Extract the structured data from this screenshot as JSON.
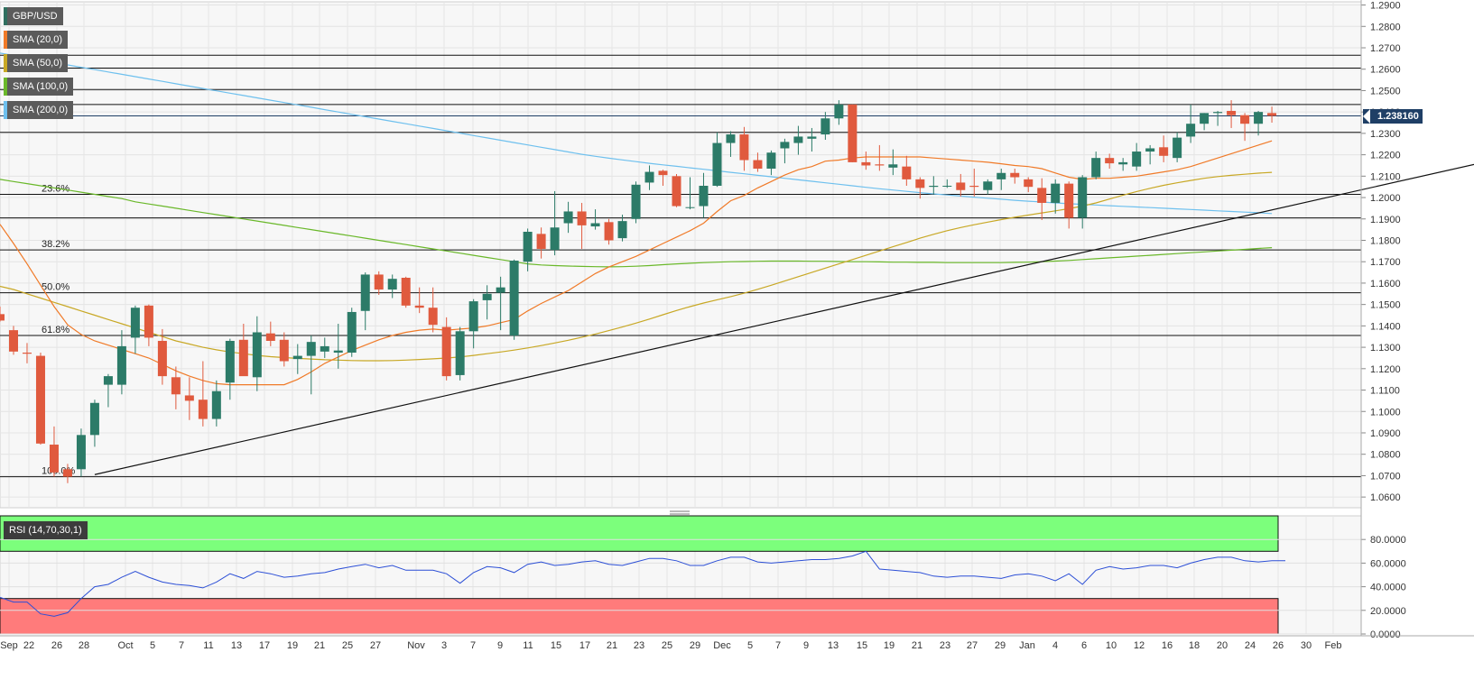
{
  "instrument": "GBP/USD",
  "legend": [
    {
      "label": "GBP/USD",
      "color": "#2f6f5f"
    },
    {
      "label": "SMA (20,0)",
      "color": "#f07a28"
    },
    {
      "label": "SMA (50,0)",
      "color": "#c8a825"
    },
    {
      "label": "SMA (100,0)",
      "color": "#6ab82a"
    },
    {
      "label": "SMA (200,0)",
      "color": "#6ec0ee"
    }
  ],
  "current_price": "1.238160",
  "rsi_label": "RSI (14,70,30,1)",
  "colors": {
    "up": "#2c7b68",
    "down": "#e05a3e",
    "sma20": "#f07a28",
    "sma50": "#c8a825",
    "sma100": "#6ab82a",
    "sma200": "#6ec0ee",
    "rsi": "#2c4fd6",
    "overbought": "#7cff7c",
    "oversold": "#ff7b7b",
    "tag": "#1f3f66"
  },
  "chart_data": {
    "type": "candlestick",
    "title": "",
    "price_ylim": [
      1.055,
      1.2915
    ],
    "price_ticks": [
      "1.2900",
      "1.2800",
      "1.2700",
      "1.2600",
      "1.2500",
      "1.2400",
      "1.2300",
      "1.2200",
      "1.2100",
      "1.2000",
      "1.1900",
      "1.1800",
      "1.1700",
      "1.1600",
      "1.1500",
      "1.1400",
      "1.1300",
      "1.1200",
      "1.1100",
      "1.1000",
      "1.0900",
      "1.0800",
      "1.0700",
      "1.0600"
    ],
    "x_ticks": [
      "Sep",
      "22",
      "26",
      "28",
      "Oct",
      "5",
      "7",
      "11",
      "13",
      "17",
      "19",
      "21",
      "25",
      "27",
      "Nov",
      "3",
      "7",
      "9",
      "11",
      "15",
      "17",
      "21",
      "23",
      "25",
      "29",
      "Dec",
      "5",
      "7",
      "9",
      "13",
      "15",
      "19",
      "21",
      "23",
      "27",
      "29",
      "Jan",
      "4",
      "6",
      "10",
      "12",
      "16",
      "18",
      "20",
      "24",
      "26",
      "30",
      "Feb"
    ],
    "candles": [
      {
        "o": 1.1455,
        "h": 1.149,
        "l": 1.142,
        "c": 1.1425
      },
      {
        "o": 1.138,
        "h": 1.14,
        "l": 1.1265,
        "c": 1.128
      },
      {
        "o": 1.1275,
        "h": 1.132,
        "l": 1.1225,
        "c": 1.127
      },
      {
        "o": 1.126,
        "h": 1.1275,
        "l": 1.0845,
        "c": 1.085
      },
      {
        "o": 1.0845,
        "h": 1.093,
        "l": 1.0695,
        "c": 1.0715
      },
      {
        "o": 1.073,
        "h": 1.0755,
        "l": 1.0665,
        "c": 1.0695
      },
      {
        "o": 1.073,
        "h": 1.092,
        "l": 1.0695,
        "c": 1.089
      },
      {
        "o": 1.089,
        "h": 1.1055,
        "l": 1.0835,
        "c": 1.104
      },
      {
        "o": 1.1125,
        "h": 1.1175,
        "l": 1.102,
        "c": 1.1165
      },
      {
        "o": 1.1125,
        "h": 1.138,
        "l": 1.108,
        "c": 1.1305
      },
      {
        "o": 1.1345,
        "h": 1.1495,
        "l": 1.127,
        "c": 1.1485
      },
      {
        "o": 1.1495,
        "h": 1.15,
        "l": 1.1305,
        "c": 1.1345
      },
      {
        "o": 1.133,
        "h": 1.1385,
        "l": 1.1125,
        "c": 1.1165
      },
      {
        "o": 1.116,
        "h": 1.121,
        "l": 1.101,
        "c": 1.108
      },
      {
        "o": 1.1075,
        "h": 1.116,
        "l": 1.096,
        "c": 1.105
      },
      {
        "o": 1.1055,
        "h": 1.1235,
        "l": 1.093,
        "c": 1.0965
      },
      {
        "o": 1.0965,
        "h": 1.1145,
        "l": 1.093,
        "c": 1.1095
      },
      {
        "o": 1.1135,
        "h": 1.134,
        "l": 1.1055,
        "c": 1.133
      },
      {
        "o": 1.1335,
        "h": 1.141,
        "l": 1.117,
        "c": 1.1165
      },
      {
        "o": 1.116,
        "h": 1.1445,
        "l": 1.1095,
        "c": 1.137
      },
      {
        "o": 1.1365,
        "h": 1.142,
        "l": 1.1305,
        "c": 1.133
      },
      {
        "o": 1.1335,
        "h": 1.137,
        "l": 1.121,
        "c": 1.1235
      },
      {
        "o": 1.1245,
        "h": 1.1315,
        "l": 1.1175,
        "c": 1.126
      },
      {
        "o": 1.126,
        "h": 1.1355,
        "l": 1.108,
        "c": 1.1325
      },
      {
        "o": 1.128,
        "h": 1.1345,
        "l": 1.125,
        "c": 1.1305
      },
      {
        "o": 1.1275,
        "h": 1.141,
        "l": 1.12,
        "c": 1.1285
      },
      {
        "o": 1.1275,
        "h": 1.1485,
        "l": 1.1255,
        "c": 1.1465
      },
      {
        "o": 1.147,
        "h": 1.165,
        "l": 1.138,
        "c": 1.164
      },
      {
        "o": 1.164,
        "h": 1.1655,
        "l": 1.1545,
        "c": 1.157
      },
      {
        "o": 1.157,
        "h": 1.164,
        "l": 1.153,
        "c": 1.162
      },
      {
        "o": 1.1625,
        "h": 1.163,
        "l": 1.1485,
        "c": 1.1495
      },
      {
        "o": 1.1495,
        "h": 1.158,
        "l": 1.146,
        "c": 1.1485
      },
      {
        "o": 1.1485,
        "h": 1.158,
        "l": 1.137,
        "c": 1.1405
      },
      {
        "o": 1.1395,
        "h": 1.144,
        "l": 1.1145,
        "c": 1.1165
      },
      {
        "o": 1.117,
        "h": 1.1395,
        "l": 1.1145,
        "c": 1.1375
      },
      {
        "o": 1.1375,
        "h": 1.1525,
        "l": 1.1295,
        "c": 1.1515
      },
      {
        "o": 1.152,
        "h": 1.159,
        "l": 1.143,
        "c": 1.155
      },
      {
        "o": 1.1555,
        "h": 1.163,
        "l": 1.138,
        "c": 1.158
      },
      {
        "o": 1.1355,
        "h": 1.171,
        "l": 1.1335,
        "c": 1.1705
      },
      {
        "o": 1.17,
        "h": 1.1855,
        "l": 1.1655,
        "c": 1.184
      },
      {
        "o": 1.183,
        "h": 1.186,
        "l": 1.1715,
        "c": 1.176
      },
      {
        "o": 1.1755,
        "h": 1.203,
        "l": 1.173,
        "c": 1.186
      },
      {
        "o": 1.188,
        "h": 1.198,
        "l": 1.1835,
        "c": 1.1935
      },
      {
        "o": 1.1935,
        "h": 1.1975,
        "l": 1.176,
        "c": 1.187
      },
      {
        "o": 1.1865,
        "h": 1.1945,
        "l": 1.185,
        "c": 1.188
      },
      {
        "o": 1.1885,
        "h": 1.19,
        "l": 1.178,
        "c": 1.18
      },
      {
        "o": 1.181,
        "h": 1.192,
        "l": 1.1795,
        "c": 1.189
      },
      {
        "o": 1.19,
        "h": 1.2075,
        "l": 1.188,
        "c": 1.206
      },
      {
        "o": 1.207,
        "h": 1.215,
        "l": 1.2035,
        "c": 1.212
      },
      {
        "o": 1.2125,
        "h": 1.213,
        "l": 1.2055,
        "c": 1.2105
      },
      {
        "o": 1.21,
        "h": 1.211,
        "l": 1.1955,
        "c": 1.196
      },
      {
        "o": 1.1955,
        "h": 1.2095,
        "l": 1.1945,
        "c": 1.1955
      },
      {
        "o": 1.196,
        "h": 1.2115,
        "l": 1.1905,
        "c": 1.2055
      },
      {
        "o": 1.2055,
        "h": 1.2305,
        "l": 1.205,
        "c": 1.2255
      },
      {
        "o": 1.2255,
        "h": 1.231,
        "l": 1.219,
        "c": 1.2295
      },
      {
        "o": 1.2295,
        "h": 1.233,
        "l": 1.2125,
        "c": 1.2175
      },
      {
        "o": 1.2175,
        "h": 1.221,
        "l": 1.212,
        "c": 1.2135
      },
      {
        "o": 1.2135,
        "h": 1.222,
        "l": 1.2105,
        "c": 1.221
      },
      {
        "o": 1.223,
        "h": 1.2275,
        "l": 1.216,
        "c": 1.226
      },
      {
        "o": 1.2255,
        "h": 1.2335,
        "l": 1.22,
        "c": 1.2285
      },
      {
        "o": 1.2275,
        "h": 1.2325,
        "l": 1.2215,
        "c": 1.2285
      },
      {
        "o": 1.2295,
        "h": 1.24,
        "l": 1.227,
        "c": 1.237
      },
      {
        "o": 1.237,
        "h": 1.2455,
        "l": 1.234,
        "c": 1.2435
      },
      {
        "o": 1.2435,
        "h": 1.2435,
        "l": 1.2165,
        "c": 1.2165
      },
      {
        "o": 1.2165,
        "h": 1.2215,
        "l": 1.213,
        "c": 1.215
      },
      {
        "o": 1.2155,
        "h": 1.2245,
        "l": 1.2125,
        "c": 1.215
      },
      {
        "o": 1.214,
        "h": 1.2225,
        "l": 1.2105,
        "c": 1.2155
      },
      {
        "o": 1.2145,
        "h": 1.2195,
        "l": 1.2055,
        "c": 1.2085
      },
      {
        "o": 1.2085,
        "h": 1.2095,
        "l": 1.1995,
        "c": 1.2045
      },
      {
        "o": 1.205,
        "h": 1.21,
        "l": 1.2015,
        "c": 1.2055
      },
      {
        "o": 1.2055,
        "h": 1.2085,
        "l": 1.2045,
        "c": 1.2055
      },
      {
        "o": 1.207,
        "h": 1.211,
        "l": 1.2005,
        "c": 1.2035
      },
      {
        "o": 1.2055,
        "h": 1.2135,
        "l": 1.2005,
        "c": 1.205
      },
      {
        "o": 1.2035,
        "h": 1.2085,
        "l": 1.2015,
        "c": 1.2075
      },
      {
        "o": 1.2085,
        "h": 1.2135,
        "l": 1.2035,
        "c": 1.2115
      },
      {
        "o": 1.2115,
        "h": 1.2135,
        "l": 1.2065,
        "c": 1.2095
      },
      {
        "o": 1.2085,
        "h": 1.2095,
        "l": 1.2025,
        "c": 1.205
      },
      {
        "o": 1.2045,
        "h": 1.209,
        "l": 1.1895,
        "c": 1.1975
      },
      {
        "o": 1.1975,
        "h": 1.2085,
        "l": 1.1925,
        "c": 1.2065
      },
      {
        "o": 1.2065,
        "h": 1.2075,
        "l": 1.1855,
        "c": 1.1905
      },
      {
        "o": 1.1905,
        "h": 1.2105,
        "l": 1.1855,
        "c": 1.2095
      },
      {
        "o": 1.2095,
        "h": 1.2215,
        "l": 1.2085,
        "c": 1.2185
      },
      {
        "o": 1.2185,
        "h": 1.2205,
        "l": 1.2135,
        "c": 1.216
      },
      {
        "o": 1.2155,
        "h": 1.2185,
        "l": 1.2125,
        "c": 1.2165
      },
      {
        "o": 1.2145,
        "h": 1.2255,
        "l": 1.2125,
        "c": 1.2215
      },
      {
        "o": 1.2215,
        "h": 1.2245,
        "l": 1.2155,
        "c": 1.223
      },
      {
        "o": 1.2235,
        "h": 1.229,
        "l": 1.2165,
        "c": 1.2195
      },
      {
        "o": 1.2185,
        "h": 1.2305,
        "l": 1.2165,
        "c": 1.228
      },
      {
        "o": 1.2285,
        "h": 1.2435,
        "l": 1.2255,
        "c": 1.2345
      },
      {
        "o": 1.2345,
        "h": 1.2395,
        "l": 1.2315,
        "c": 1.2395
      },
      {
        "o": 1.2395,
        "h": 1.2405,
        "l": 1.2335,
        "c": 1.24
      },
      {
        "o": 1.2405,
        "h": 1.2455,
        "l": 1.2325,
        "c": 1.2385
      },
      {
        "o": 1.2385,
        "h": 1.2395,
        "l": 1.2265,
        "c": 1.2345
      },
      {
        "o": 1.2345,
        "h": 1.2405,
        "l": 1.229,
        "c": 1.24
      },
      {
        "o": 1.2395,
        "h": 1.2425,
        "l": 1.235,
        "c": 1.2382
      }
    ],
    "sma20": [
      1.1875,
      1.1785,
      1.169,
      1.159,
      1.149,
      1.1405,
      1.136,
      1.133,
      1.131,
      1.129,
      1.127,
      1.125,
      1.122,
      1.119,
      1.1165,
      1.1145,
      1.113,
      1.1125,
      1.1125,
      1.1125,
      1.1125,
      1.1125,
      1.115,
      1.1185,
      1.1225,
      1.1255,
      1.1285,
      1.131,
      1.1335,
      1.1355,
      1.137,
      1.138,
      1.1385,
      1.138,
      1.1385,
      1.139,
      1.14,
      1.1415,
      1.143,
      1.147,
      1.1505,
      1.1535,
      1.1565,
      1.1605,
      1.1645,
      1.1675,
      1.17,
      1.1725,
      1.1755,
      1.1785,
      1.1815,
      1.1845,
      1.188,
      1.1935,
      1.1985,
      1.201,
      1.2045,
      1.2075,
      1.2105,
      1.213,
      1.2145,
      1.217,
      1.2175,
      1.2185,
      1.219,
      1.219,
      1.219,
      1.219,
      1.219,
      1.2185,
      1.218,
      1.2175,
      1.217,
      1.2165,
      1.2158,
      1.215,
      1.2145,
      1.2135,
      1.2115,
      1.2095,
      1.2085,
      1.209,
      1.209,
      1.2095,
      1.21,
      1.211,
      1.212,
      1.213,
      1.2145,
      1.2165,
      1.2185,
      1.2205,
      1.2225,
      1.2245,
      1.2265
    ],
    "sma50": [
      1.1585,
      1.157,
      1.155,
      1.153,
      1.151,
      1.149,
      1.147,
      1.145,
      1.143,
      1.141,
      1.139,
      1.137,
      1.135,
      1.133,
      1.1315,
      1.13,
      1.1288,
      1.1278,
      1.127,
      1.1262,
      1.1256,
      1.1252,
      1.1248,
      1.1245,
      1.1242,
      1.124,
      1.1238,
      1.1237,
      1.1237,
      1.1238,
      1.124,
      1.1243,
      1.1246,
      1.125,
      1.1255,
      1.1262,
      1.127,
      1.1278,
      1.1287,
      1.1297,
      1.1308,
      1.132,
      1.1333,
      1.1347,
      1.1362,
      1.1378,
      1.1395,
      1.1413,
      1.1432,
      1.1452,
      1.1472,
      1.149,
      1.1507,
      1.1522,
      1.1537,
      1.1553,
      1.1571,
      1.159,
      1.161,
      1.163,
      1.165,
      1.167,
      1.169,
      1.171,
      1.173,
      1.175,
      1.177,
      1.179,
      1.181,
      1.1828,
      1.1845,
      1.186,
      1.1873,
      1.1885,
      1.1897,
      1.1908,
      1.1918,
      1.1928,
      1.1938,
      1.1948,
      1.196,
      1.1975,
      1.1993,
      1.2011,
      1.2028,
      1.2043,
      1.2057,
      1.2069,
      1.208,
      1.209,
      1.2098,
      1.2104,
      1.2109,
      1.2114,
      1.2118
    ],
    "sma100": [
      1.2085,
      1.2075,
      1.2065,
      1.2055,
      1.2045,
      1.2035,
      1.2025,
      1.2015,
      1.2005,
      1.1995,
      1.198,
      1.197,
      1.196,
      1.195,
      1.194,
      1.193,
      1.192,
      1.191,
      1.19,
      1.189,
      1.188,
      1.187,
      1.186,
      1.185,
      1.184,
      1.183,
      1.182,
      1.181,
      1.18,
      1.179,
      1.178,
      1.177,
      1.176,
      1.175,
      1.174,
      1.173,
      1.172,
      1.171,
      1.17,
      1.169,
      1.1685,
      1.1682,
      1.168,
      1.1678,
      1.1677,
      1.1676,
      1.1677,
      1.1679,
      1.1682,
      1.1686,
      1.169,
      1.1693,
      1.1696,
      1.1698,
      1.17,
      1.1701,
      1.1702,
      1.1703,
      1.1703,
      1.1703,
      1.1702,
      1.1702,
      1.1701,
      1.17,
      1.17,
      1.1699,
      1.1698,
      1.1698,
      1.1697,
      1.1697,
      1.1696,
      1.1696,
      1.1696,
      1.1696,
      1.1696,
      1.1697,
      1.1698,
      1.17,
      1.1703,
      1.1706,
      1.171,
      1.1714,
      1.1718,
      1.1722,
      1.1726,
      1.173,
      1.1734,
      1.1738,
      1.1742,
      1.1746,
      1.175,
      1.1754,
      1.1758,
      1.1762,
      1.1766
    ],
    "sma200": [
      1.2675,
      1.2664,
      1.2653,
      1.2642,
      1.2631,
      1.262,
      1.2609,
      1.2598,
      1.2587,
      1.2576,
      1.2565,
      1.2554,
      1.2543,
      1.2532,
      1.2521,
      1.251,
      1.2499,
      1.2488,
      1.2477,
      1.2466,
      1.2455,
      1.2444,
      1.2433,
      1.2422,
      1.2411,
      1.24,
      1.2389,
      1.2378,
      1.2367,
      1.2356,
      1.2345,
      1.2334,
      1.2323,
      1.2312,
      1.2301,
      1.229,
      1.2279,
      1.2268,
      1.2257,
      1.2246,
      1.2235,
      1.2224,
      1.2213,
      1.2202,
      1.2193,
      1.2184,
      1.2176,
      1.2168,
      1.216,
      1.2153,
      1.2146,
      1.2139,
      1.2132,
      1.2125,
      1.2118,
      1.2111,
      1.2104,
      1.2097,
      1.209,
      1.2083,
      1.2076,
      1.2069,
      1.2062,
      1.2055,
      1.2048,
      1.2041,
      1.2035,
      1.2029,
      1.2023,
      1.2017,
      1.2012,
      1.2007,
      1.2002,
      1.1997,
      1.1992,
      1.1987,
      1.1983,
      1.1979,
      1.1975,
      1.1971,
      1.1968,
      1.1965,
      1.1962,
      1.1959,
      1.1956,
      1.1953,
      1.195,
      1.1947,
      1.1944,
      1.1941,
      1.1938,
      1.1935,
      1.1932,
      1.1929,
      1.1925
    ],
    "horizontal_levels": [
      1.2665,
      1.2605,
      1.2505,
      1.2435,
      1.2305,
      1.2015,
      1.1905,
      1.1755,
      1.1555,
      1.1355,
      1.0695
    ],
    "fibonacci_labels": [
      {
        "label": "23.6%",
        "value": 1.2015
      },
      {
        "label": "38.2%",
        "value": 1.1755
      },
      {
        "label": "50.0%",
        "value": 1.1555
      },
      {
        "label": "61.8%",
        "value": 1.1355
      },
      {
        "label": "100.0%",
        "value": 1.0695
      }
    ],
    "trendline": [
      {
        "index": 7,
        "value": 1.0705
      },
      {
        "index": 116,
        "value": 1.2255
      }
    ],
    "rsi": {
      "ylim": [
        0,
        100
      ],
      "ticks": [
        "80.0000",
        "60.0000",
        "40.0000",
        "20.0000",
        "0.0000"
      ],
      "overbought": 70,
      "oversold": 30,
      "values": [
        31,
        27,
        27,
        17,
        15,
        18,
        30,
        40,
        42,
        48,
        53,
        48,
        44,
        42,
        41,
        39,
        44,
        51,
        47,
        53,
        51,
        48,
        49,
        51,
        52,
        55,
        57,
        59,
        56,
        58,
        54,
        54,
        54,
        51,
        43,
        52,
        57,
        56,
        52,
        59,
        61,
        58,
        59,
        61,
        62,
        59,
        58,
        61,
        64,
        64,
        62,
        58,
        58,
        62,
        65,
        65,
        61,
        60,
        61,
        62,
        63,
        63,
        64,
        66,
        70,
        55,
        54,
        53,
        52,
        49,
        48,
        49,
        49,
        48,
        47,
        50,
        51,
        49,
        45,
        51,
        42,
        54,
        57,
        55,
        56,
        58,
        58,
        56,
        60,
        63,
        65,
        65,
        62,
        61,
        62,
        62
      ]
    }
  }
}
